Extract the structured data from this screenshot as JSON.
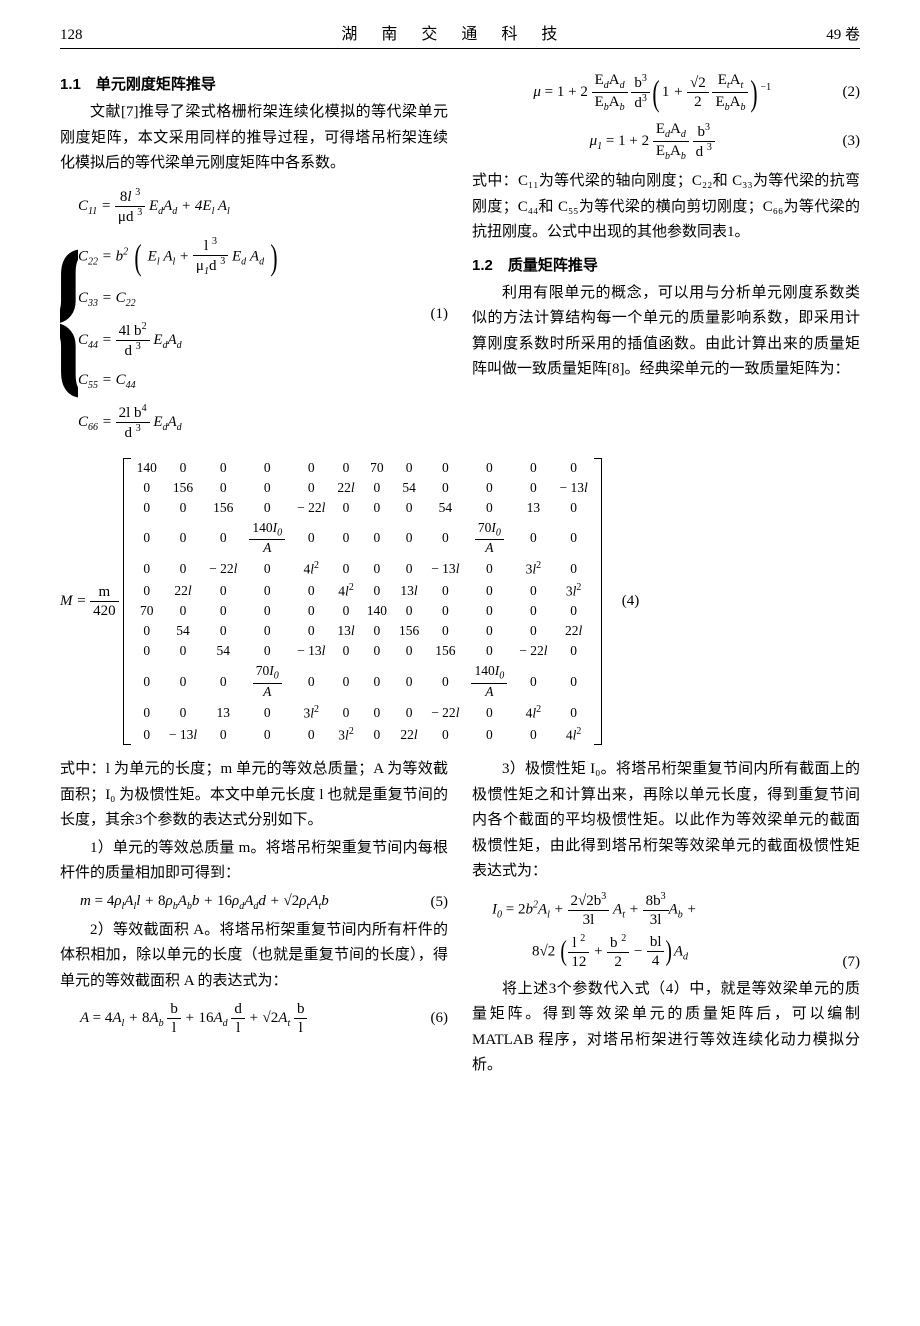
{
  "header": {
    "page_num": "128",
    "journal_title": "湖 南 交 通 科 技",
    "volume": "49 卷"
  },
  "section11": {
    "title": "1.1　单元刚度矩阵推导",
    "para1": "文献[7]推导了梁式格栅桁架连续化模拟的等代梁单元刚度矩阵，本文采用同样的推导过程，可得塔吊桁架连续化模拟后的等代梁单元刚度矩阵中各系数。"
  },
  "eq1": {
    "label": "(1)",
    "rows": {
      "c11_left": "C",
      "c22_left": "C",
      "c33": "C₃₃ = C₂₂",
      "c44_left": "C",
      "c55": "C₅₅ = C₄₄",
      "c66_left": "C"
    }
  },
  "eq2": {
    "label": "(2)"
  },
  "eq3": {
    "label": "(3)"
  },
  "right_col_1": {
    "para1": "式中：C₁₁为等代梁的轴向刚度；C₂₂和 C₃₃为等代梁的抗弯刚度；C₄₄和 C₅₅为等代梁的横向剪切刚度；C₆₆为等代梁的抗扭刚度。公式中出现的其他参数同表1。"
  },
  "section12": {
    "title": "1.2　质量矩阵推导",
    "para1": "利用有限单元的概念，可以用与分析单元刚度系数类似的方法计算结构每一个单元的质量影响系数，即采用计算刚度系数时所采用的插值函数。由此计算出来的质量矩阵叫做一致质量矩阵[8]。经典梁单元的一致质量矩阵为："
  },
  "eq4": {
    "prefix": "M = ",
    "factor_num": "m",
    "factor_den": "420",
    "label": "(4)",
    "matrix": [
      [
        "140",
        "0",
        "0",
        "0",
        "0",
        "0",
        "70",
        "0",
        "0",
        "0",
        "0",
        "0"
      ],
      [
        "0",
        "156",
        "0",
        "0",
        "0",
        "22l",
        "0",
        "54",
        "0",
        "0",
        "0",
        "−13l"
      ],
      [
        "0",
        "0",
        "156",
        "0",
        "−22l",
        "0",
        "0",
        "0",
        "54",
        "0",
        "13",
        "0"
      ],
      [
        "0",
        "0",
        "0",
        "FRAC_140I0_A",
        "0",
        "0",
        "0",
        "0",
        "0",
        "FRAC_70I0_A",
        "0",
        "0"
      ],
      [
        "0",
        "0",
        "−22l",
        "0",
        "4l²",
        "0",
        "0",
        "0",
        "−13l",
        "0",
        "3l²",
        "0"
      ],
      [
        "0",
        "22l",
        "0",
        "0",
        "0",
        "4l²",
        "0",
        "13l",
        "0",
        "0",
        "0",
        "3l²"
      ],
      [
        "70",
        "0",
        "0",
        "0",
        "0",
        "0",
        "140",
        "0",
        "0",
        "0",
        "0",
        "0"
      ],
      [
        "0",
        "54",
        "0",
        "0",
        "0",
        "13l",
        "0",
        "156",
        "0",
        "0",
        "0",
        "22l"
      ],
      [
        "0",
        "0",
        "54",
        "0",
        "−13l",
        "0",
        "0",
        "0",
        "156",
        "0",
        "−22l",
        "0"
      ],
      [
        "0",
        "0",
        "0",
        "FRAC_70I0_A",
        "0",
        "0",
        "0",
        "0",
        "0",
        "FRAC_140I0_A",
        "0",
        "0"
      ],
      [
        "0",
        "0",
        "13",
        "0",
        "3l²",
        "0",
        "0",
        "0",
        "−22l",
        "0",
        "4l²",
        "0"
      ],
      [
        "0",
        "−13l",
        "0",
        "0",
        "0",
        "3l²",
        "0",
        "22l",
        "0",
        "0",
        "0",
        "4l²"
      ]
    ]
  },
  "after_matrix": {
    "left_para1": "式中：l 为单元的长度；m 单元的等效总质量；A 为等效截面积；I₀ 为极惯性矩。本文中单元长度 l 也就是重复节间的长度，其余3个参数的表达式分别如下。",
    "left_item1": "1）单元的等效总质量 m。将塔吊桁架重复节间内每根杆件的质量相加即可得到：",
    "left_item2": "2）等效截面积 A。将塔吊桁架重复节间内所有杆件的体积相加，除以单元的长度（也就是重复节间的长度），得单元的等效截面积 A 的表达式为：",
    "right_item3": "3）极惯性矩 I₀。将塔吊桁架重复节间内所有截面上的极惯性矩之和计算出来，再除以单元长度，得到重复节间内各个截面的平均极惯性矩。以此作为等效梁单元的截面极惯性矩，由此得到塔吊桁架等效梁单元的截面极惯性矩表达式为：",
    "right_para_final": "将上述3个参数代入式（4）中，就是等效梁单元的质量矩阵。得到等效梁单元的质量矩阵后，可以编制 MATLAB 程序，对塔吊桁架进行等效连续化动力模拟分析。"
  },
  "eq5": {
    "label": "(5)"
  },
  "eq6": {
    "label": "(6)"
  },
  "eq7": {
    "label": "(7)"
  }
}
